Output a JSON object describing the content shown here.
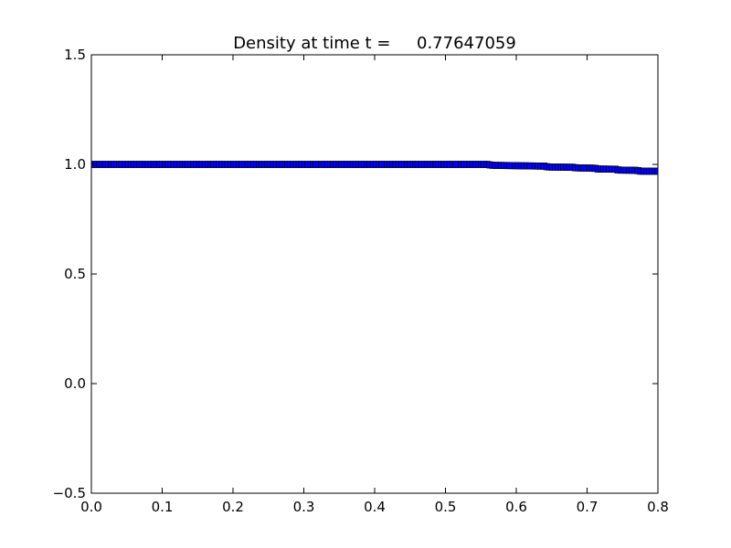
{
  "chart_data": {
    "type": "scatter",
    "title": "Density at time t =     0.77647059",
    "xlabel": "",
    "ylabel": "",
    "xlim": [
      0.0,
      0.8
    ],
    "ylim": [
      -0.5,
      1.5
    ],
    "xticks": [
      "0.0",
      "0.1",
      "0.2",
      "0.3",
      "0.4",
      "0.5",
      "0.6",
      "0.7",
      "0.8"
    ],
    "yticks": [
      "1.5",
      "1.0",
      "0.5",
      "0.0",
      "−0.5"
    ],
    "grid": false,
    "legend": "none",
    "marker": "square",
    "marker_color": "#0000ff",
    "marker_edge_color": "#000000",
    "series": [
      {
        "x_start": 0.0,
        "x_end": 0.8,
        "n_points": 200,
        "profile": [
          [
            0.0,
            1.0
          ],
          [
            0.56,
            1.0
          ],
          [
            0.565,
            0.996
          ],
          [
            0.6,
            0.994
          ],
          [
            0.64,
            0.992
          ],
          [
            0.645,
            0.988
          ],
          [
            0.68,
            0.987
          ],
          [
            0.685,
            0.984
          ],
          [
            0.71,
            0.983
          ],
          [
            0.715,
            0.979
          ],
          [
            0.74,
            0.978
          ],
          [
            0.745,
            0.974
          ],
          [
            0.77,
            0.973
          ],
          [
            0.775,
            0.969
          ],
          [
            0.8,
            0.969
          ]
        ]
      }
    ]
  }
}
